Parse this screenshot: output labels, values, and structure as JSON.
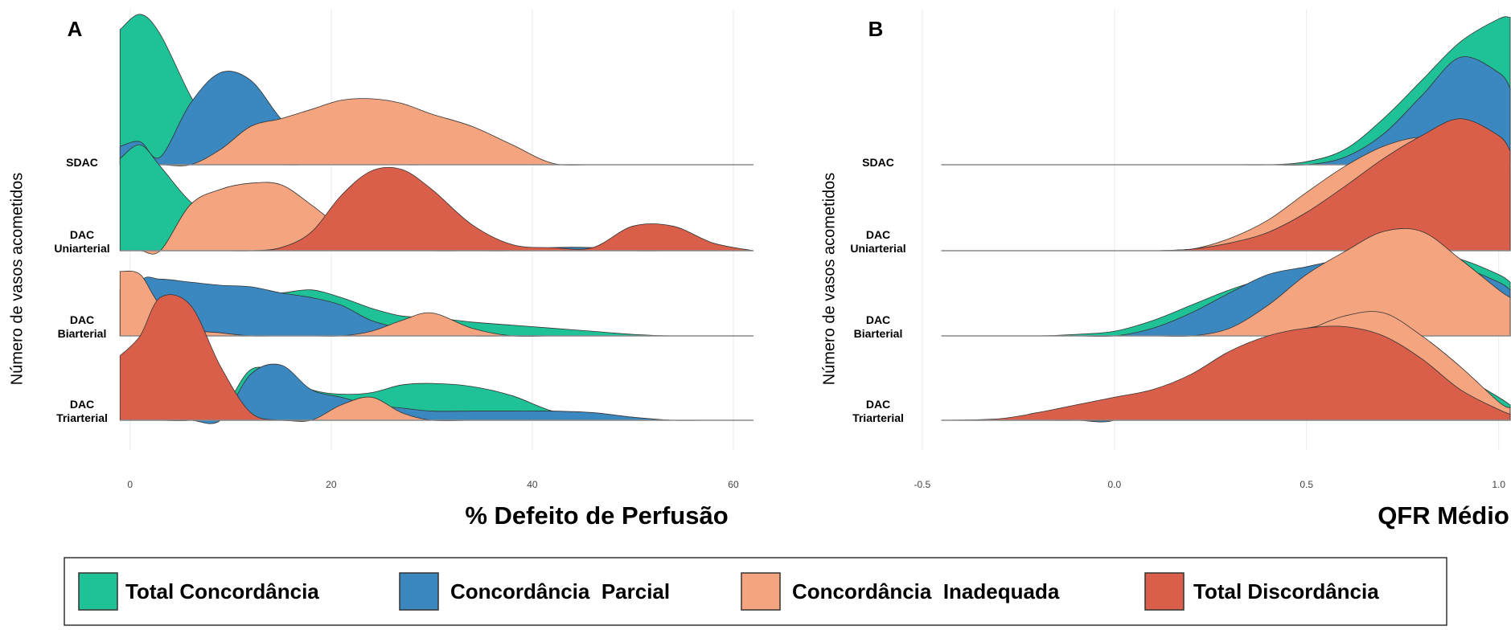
{
  "chart_data": [
    {
      "type": "ridgeline",
      "title": "A",
      "x_label": "% Defeito de Perfusão",
      "y_label": "Número de vasos acometidos",
      "categories": [
        [
          "SDAC"
        ],
        [
          "DAC",
          "Uniarterial"
        ],
        [
          "DAC",
          "Biarterial"
        ],
        [
          "DAC",
          "Triarterial"
        ]
      ],
      "x": [
        -1,
        1,
        3,
        6,
        9,
        12,
        15,
        18,
        21,
        24,
        27,
        30,
        34,
        38,
        42,
        46,
        50,
        54,
        58,
        62
      ],
      "xlim": [
        -1.1,
        63
      ],
      "xticks": [
        0,
        20,
        40,
        60
      ],
      "grid": true,
      "series": [
        {
          "name": "Total Concordância",
          "color": "#1fc196",
          "values": [
            [
              0.88,
              0.98,
              0.85,
              0.45,
              0.12,
              0.02,
              0,
              0,
              0,
              0,
              0,
              0,
              0,
              0,
              0,
              0,
              0,
              0,
              0,
              0
            ],
            [
              0.6,
              0.69,
              0.55,
              0.32,
              0.2,
              0.12,
              0.07,
              0.03,
              0.01,
              0,
              0,
              0,
              0,
              0,
              0,
              0,
              0,
              0,
              0,
              0
            ],
            [
              0.3,
              0.3,
              0.28,
              0.25,
              0.26,
              0.28,
              0.28,
              0.3,
              0.25,
              0.18,
              0.13,
              0.12,
              0.09,
              0.07,
              0.05,
              0.03,
              0.01,
              0,
              0,
              0
            ],
            [
              0,
              0,
              0,
              0,
              0.05,
              0.33,
              0.3,
              0.2,
              0.17,
              0.18,
              0.23,
              0.24,
              0.22,
              0.16,
              0.06,
              0.02,
              0.01,
              0,
              0,
              0
            ]
          ]
        },
        {
          "name": "Concordância  Parcial",
          "color": "#3b87bf",
          "values": [
            [
              0.12,
              0.15,
              0.05,
              0.4,
              0.6,
              0.55,
              0.3,
              0.12,
              0.05,
              0.02,
              0,
              0,
              0,
              0,
              0,
              0,
              0,
              0,
              0,
              0
            ],
            [
              0,
              0,
              0,
              0,
              0,
              0,
              0,
              0,
              0,
              0,
              0,
              0,
              0,
              0,
              0.02,
              0.02,
              0,
              0,
              0,
              0
            ],
            [
              0,
              0.35,
              0.37,
              0.35,
              0.33,
              0.32,
              0.28,
              0.25,
              0.2,
              0.1,
              0.05,
              0.02,
              0,
              0,
              0,
              0,
              0,
              0,
              0,
              0
            ],
            [
              0,
              0,
              0,
              0,
              0,
              0.3,
              0.36,
              0.2,
              0.15,
              0.1,
              0.08,
              0.06,
              0.06,
              0.06,
              0.06,
              0.05,
              0.02,
              0,
              0,
              0
            ]
          ]
        },
        {
          "name": "Concordância  Inadequada",
          "color": "#f4a47f",
          "values": [
            [
              0,
              0,
              0,
              0,
              0.1,
              0.25,
              0.3,
              0.36,
              0.42,
              0.43,
              0.4,
              0.33,
              0.25,
              0.13,
              0.01,
              0,
              0,
              0,
              0,
              0
            ],
            [
              0,
              0,
              0,
              0.3,
              0.4,
              0.44,
              0.43,
              0.3,
              0.15,
              0.05,
              0.02,
              0,
              0,
              0,
              0,
              0,
              0,
              0,
              0,
              0
            ],
            [
              0.42,
              0.4,
              0.2,
              0.05,
              0.02,
              0,
              0,
              0,
              0,
              0.03,
              0.1,
              0.15,
              0.05,
              0,
              0,
              0,
              0,
              0,
              0,
              0
            ],
            [
              0,
              0,
              0,
              0,
              0,
              0,
              0,
              0,
              0.1,
              0.15,
              0.05,
              0,
              0,
              0,
              0,
              0,
              0,
              0,
              0,
              0
            ]
          ]
        },
        {
          "name": "Total Discordância",
          "color": "#d95f4b",
          "values": [
            [
              0,
              0,
              0,
              0,
              0,
              0,
              0,
              0,
              0,
              0,
              0,
              0,
              0,
              0,
              0,
              0,
              0,
              0,
              0,
              0
            ],
            [
              0,
              0,
              0,
              0,
              0,
              0,
              0.02,
              0.12,
              0.36,
              0.52,
              0.53,
              0.4,
              0.17,
              0.04,
              0.02,
              0.02,
              0.16,
              0.16,
              0.05,
              0
            ],
            [
              0,
              0,
              0,
              0,
              0,
              0,
              0,
              0,
              0,
              0,
              0,
              0,
              0,
              0,
              0,
              0,
              0,
              0,
              0,
              0
            ],
            [
              0.42,
              0.55,
              0.8,
              0.75,
              0.35,
              0.05,
              0,
              0,
              0,
              0,
              0,
              0,
              0,
              0,
              0,
              0,
              0,
              0,
              0,
              0
            ]
          ]
        }
      ]
    },
    {
      "type": "ridgeline",
      "title": "B",
      "x_label": "QFR Médio",
      "y_label": "Número de vasos acometidos",
      "categories": [
        [
          "SDAC"
        ],
        [
          "DAC",
          "Uniarterial"
        ],
        [
          "DAC",
          "Biarterial"
        ],
        [
          "DAC",
          "Triarterial"
        ]
      ],
      "x": [
        -0.45,
        -0.3,
        -0.2,
        -0.1,
        0,
        0.1,
        0.2,
        0.3,
        0.4,
        0.5,
        0.6,
        0.7,
        0.8,
        0.9,
        1,
        1.03
      ],
      "xlim": [
        -0.55,
        1.03
      ],
      "xticks": [
        -0.5,
        {
          "value": 0,
          "label": "0.0"
        },
        0.5,
        {
          "value": 1,
          "label": "1.0"
        }
      ],
      "grid": true,
      "series": [
        {
          "color": "#1fc196",
          "values": [
            [
              0,
              0,
              0,
              0,
              0,
              0,
              0,
              0,
              0,
              0.02,
              0.1,
              0.3,
              0.55,
              0.8,
              0.95,
              0.96
            ],
            [
              0,
              0,
              0,
              0,
              0,
              0,
              0.01,
              0.04,
              0.12,
              0.22,
              0.35,
              0.5,
              0.62,
              0.7,
              0.6,
              0.55
            ],
            [
              0,
              0,
              0,
              0.01,
              0.03,
              0.1,
              0.2,
              0.3,
              0.38,
              0.45,
              0.5,
              0.54,
              0.55,
              0.5,
              0.4,
              0.35
            ],
            [
              0,
              0,
              0,
              0,
              0.02,
              0.15,
              0.25,
              0.38,
              0.5,
              0.58,
              0.6,
              0.55,
              0.45,
              0.3,
              0.15,
              0.1
            ]
          ]
        },
        {
          "color": "#3b87bf",
          "values": [
            [
              0,
              0,
              0,
              0,
              0,
              0,
              0,
              0,
              0,
              0,
              0.05,
              0.2,
              0.45,
              0.7,
              0.6,
              0.5
            ],
            [
              0,
              0,
              0,
              0,
              0,
              0,
              0.01,
              0.05,
              0.15,
              0.3,
              0.45,
              0.58,
              0.7,
              0.75,
              0.6,
              0.5
            ],
            [
              0,
              0,
              0,
              0,
              0,
              0.05,
              0.15,
              0.28,
              0.4,
              0.45,
              0.5,
              0.5,
              0.5,
              0.45,
              0.35,
              0.3
            ],
            [
              0,
              0,
              0,
              0,
              0,
              0.15,
              0.28,
              0.4,
              0.52,
              0.6,
              0.62,
              0.55,
              0.42,
              0.25,
              0.1,
              0.05
            ]
          ]
        },
        {
          "color": "#f4a47f",
          "values": [
            [
              0,
              0,
              0,
              0,
              0,
              0,
              0,
              0,
              0,
              0,
              0,
              0,
              0,
              0,
              0,
              0
            ],
            [
              0,
              0,
              0,
              0,
              0,
              0,
              0.01,
              0.08,
              0.2,
              0.38,
              0.55,
              0.68,
              0.74,
              0.7,
              0.5,
              0.4
            ],
            [
              0,
              0,
              0,
              0,
              0,
              0,
              0,
              0.05,
              0.2,
              0.4,
              0.55,
              0.68,
              0.68,
              0.5,
              0.3,
              0.25
            ],
            [
              0,
              0,
              0,
              0,
              0,
              0.05,
              0.15,
              0.3,
              0.45,
              0.58,
              0.68,
              0.7,
              0.55,
              0.35,
              0.12,
              0.08
            ]
          ]
        },
        {
          "color": "#d95f4b",
          "values": [
            [
              0,
              0,
              0,
              0,
              0,
              0,
              0,
              0,
              0,
              0,
              0,
              0,
              0,
              0,
              0,
              0
            ],
            [
              0,
              0,
              0,
              0,
              0,
              0,
              0.01,
              0.05,
              0.12,
              0.25,
              0.42,
              0.6,
              0.75,
              0.86,
              0.75,
              0.65
            ],
            [
              0,
              0,
              0,
              0,
              0,
              0,
              0,
              0,
              0,
              0,
              0,
              0,
              0,
              0,
              0,
              0
            ],
            [
              0,
              0.01,
              0.05,
              0.1,
              0.15,
              0.2,
              0.3,
              0.45,
              0.55,
              0.6,
              0.61,
              0.55,
              0.4,
              0.2,
              0.07,
              0.04
            ]
          ]
        }
      ]
    }
  ]
}
